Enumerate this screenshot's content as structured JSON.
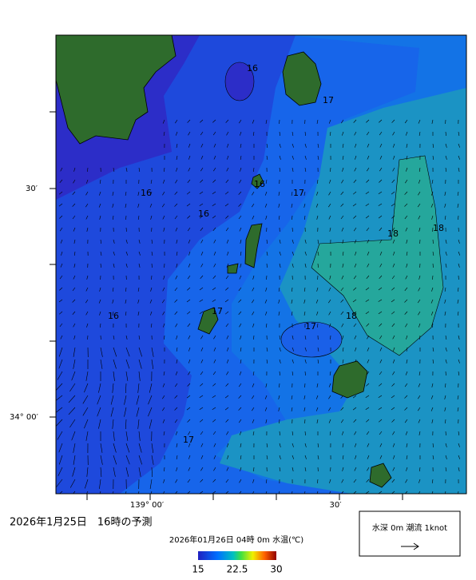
{
  "map": {
    "lat_labels": [
      "30′",
      "34° 00′"
    ],
    "lon_labels": [
      "139° 00′",
      "30′"
    ],
    "contour_labels": [
      16,
      16,
      16,
      16,
      16,
      17,
      17,
      17,
      17,
      17,
      18,
      18,
      18
    ],
    "title": "2026年1月25日　16時の予測",
    "subtitle": "2026年01月26日 04時 0m 水温(℃)",
    "colorbar_ticks": [
      15,
      22.5,
      30
    ],
    "legend": "水深 0m 潮流 1knot"
  }
}
